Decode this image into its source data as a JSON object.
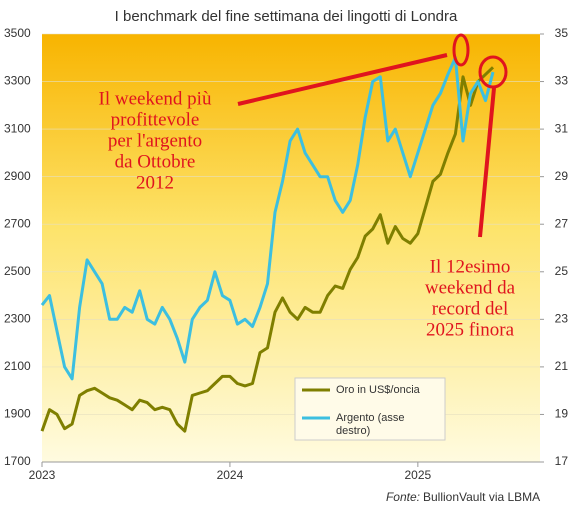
{
  "chart_data": {
    "type": "line",
    "title": "I benchmark del fine settimana dei lingotti di Londra",
    "x": [
      2023.0,
      2023.04,
      2023.08,
      2023.12,
      2023.16,
      2023.2,
      2023.24,
      2023.28,
      2023.32,
      2023.36,
      2023.4,
      2023.44,
      2023.48,
      2023.52,
      2023.56,
      2023.6,
      2023.64,
      2023.68,
      2023.72,
      2023.76,
      2023.8,
      2023.84,
      2023.88,
      2023.92,
      2023.96,
      2024.0,
      2024.04,
      2024.08,
      2024.12,
      2024.16,
      2024.2,
      2024.24,
      2024.28,
      2024.32,
      2024.36,
      2024.4,
      2024.44,
      2024.48,
      2024.52,
      2024.56,
      2024.6,
      2024.64,
      2024.68,
      2024.72,
      2024.76,
      2024.8,
      2024.84,
      2024.88,
      2024.92,
      2024.96,
      2025.0,
      2025.04,
      2025.08,
      2025.12,
      2025.16,
      2025.2,
      2025.24,
      2025.28,
      2025.32,
      2025.36,
      2025.4
    ],
    "series": [
      {
        "name": "Oro in US$/oncia",
        "color": "#7f7f00",
        "axis": "y",
        "values": [
          1830,
          1920,
          1900,
          1840,
          1860,
          1980,
          2000,
          2010,
          1990,
          1970,
          1960,
          1940,
          1920,
          1960,
          1950,
          1920,
          1930,
          1920,
          1860,
          1830,
          1980,
          1990,
          2000,
          2030,
          2060,
          2060,
          2030,
          2020,
          2030,
          2160,
          2180,
          2330,
          2390,
          2330,
          2300,
          2350,
          2330,
          2330,
          2400,
          2440,
          2430,
          2510,
          2560,
          2650,
          2680,
          2740,
          2620,
          2690,
          2640,
          2620,
          2660,
          2770,
          2880,
          2910,
          3000,
          3080,
          3320,
          3200,
          3300,
          3330,
          3360
        ]
      },
      {
        "name": "Argento (asse destro)",
        "color": "#3cbfe0",
        "axis": "y2",
        "values": [
          23.6,
          24,
          22.5,
          21,
          20.5,
          23.5,
          25.5,
          25,
          24.5,
          23,
          23,
          23.5,
          23.3,
          24.2,
          23,
          22.8,
          23.5,
          23,
          22.2,
          21.2,
          23,
          23.5,
          23.8,
          25,
          24,
          23.8,
          22.8,
          23,
          22.7,
          23.5,
          24.5,
          27.5,
          28.8,
          30.5,
          31,
          30,
          29.5,
          29,
          29,
          28,
          27.5,
          28,
          29.5,
          31.5,
          33,
          33.2,
          30.5,
          31,
          30,
          29,
          30,
          31,
          32,
          32.5,
          33.3,
          34,
          30.5,
          32.5,
          33,
          32.2,
          33.4
        ]
      }
    ],
    "xlim": [
      2023,
      2025.65
    ],
    "xticks": [
      2023,
      2024,
      2025
    ],
    "ylim": [
      1700,
      3500
    ],
    "yticks": [
      1700,
      1900,
      2100,
      2300,
      2500,
      2700,
      2900,
      3100,
      3300,
      3500
    ],
    "y2lim": [
      17,
      35
    ],
    "y2ticks": [
      17,
      19,
      21,
      23,
      25,
      27,
      29,
      31,
      33,
      35
    ],
    "annotations": [
      [
        "Il weekend più",
        "profittevole",
        "per l'argento",
        "da Ottobre",
        "2012"
      ],
      [
        "Il 12esimo",
        "weekend da",
        "record del",
        "2025 finora"
      ]
    ],
    "source_label": "Fonte:",
    "source": "BullionVault via LBMA"
  }
}
